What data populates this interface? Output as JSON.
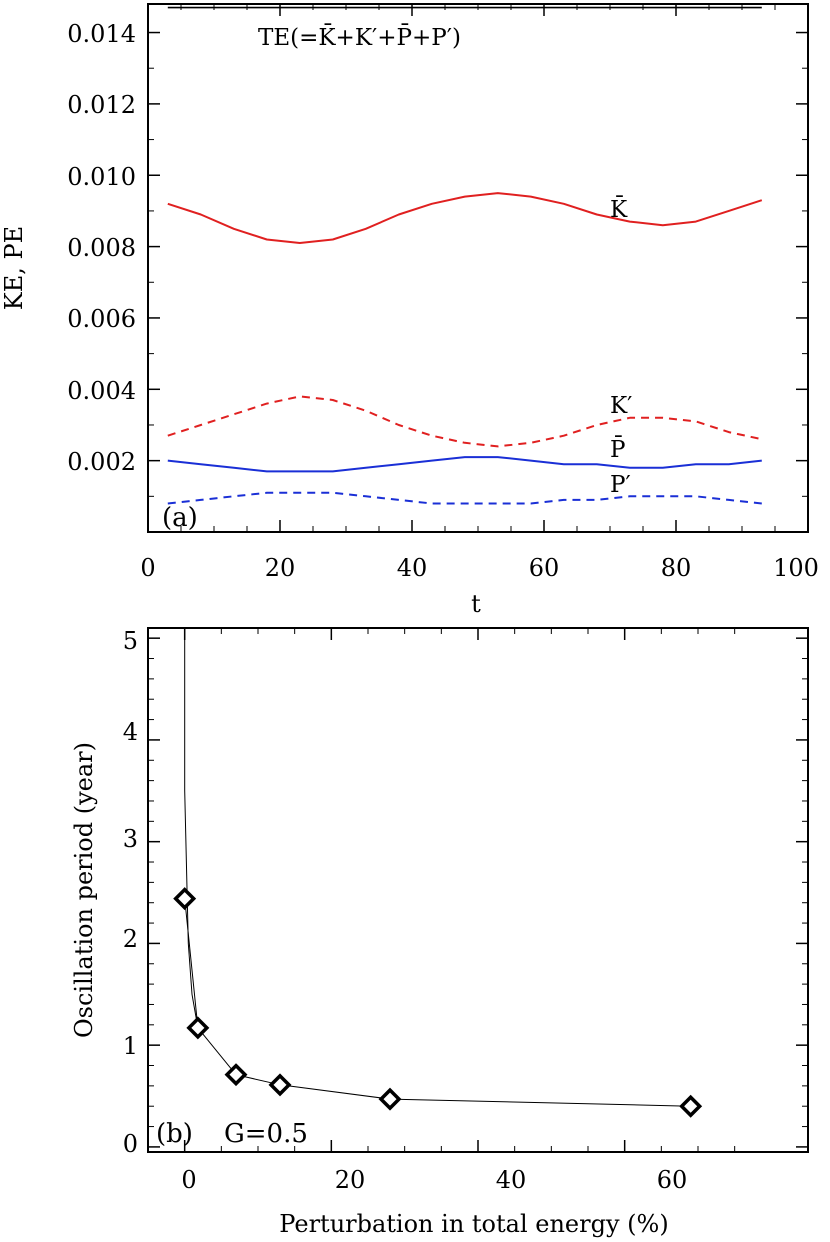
{
  "chart_data": [
    {
      "panel": "(a)",
      "type": "line",
      "xlabel": "t",
      "ylabel": "KE, PE",
      "xlim": [
        0,
        100
      ],
      "ylim": [
        0,
        0.0148
      ],
      "xticks": [
        "0",
        "20",
        "40",
        "60",
        "80",
        "100"
      ],
      "xtick_values": [
        0,
        20,
        40,
        60,
        80,
        100
      ],
      "yticks": [
        "0.002",
        "0.004",
        "0.006",
        "0.008",
        "0.010",
        "0.012",
        "0.014"
      ],
      "ytick_values": [
        0.002,
        0.004,
        0.006,
        0.008,
        0.01,
        0.012,
        0.014
      ],
      "grid": false,
      "series": [
        {
          "name": "TE(=K̄+K′+P̄+P′)",
          "color": "#000000",
          "dash": "solid",
          "x": [
            3,
            93
          ],
          "y": [
            0.0147,
            0.0147
          ]
        },
        {
          "name": "K̄",
          "color": "#e02020",
          "dash": "solid",
          "x": [
            3,
            8,
            13,
            18,
            23,
            28,
            33,
            38,
            43,
            48,
            53,
            58,
            63,
            68,
            73,
            78,
            83,
            88,
            93
          ],
          "y": [
            0.0092,
            0.0089,
            0.0085,
            0.0082,
            0.0081,
            0.0082,
            0.0085,
            0.0089,
            0.0092,
            0.0094,
            0.0095,
            0.0094,
            0.0092,
            0.0089,
            0.0087,
            0.0086,
            0.0087,
            0.009,
            0.0093
          ]
        },
        {
          "name": "K′",
          "color": "#e02020",
          "dash": "dashed",
          "x": [
            3,
            8,
            13,
            18,
            23,
            28,
            33,
            38,
            43,
            48,
            53,
            58,
            63,
            68,
            73,
            78,
            83,
            88,
            93
          ],
          "y": [
            0.0027,
            0.003,
            0.0033,
            0.0036,
            0.0038,
            0.0037,
            0.0034,
            0.003,
            0.0027,
            0.0025,
            0.0024,
            0.0025,
            0.0027,
            0.003,
            0.0032,
            0.0032,
            0.0031,
            0.0028,
            0.0026
          ]
        },
        {
          "name": "P̄",
          "color": "#1a2fd6",
          "dash": "solid",
          "x": [
            3,
            8,
            13,
            18,
            23,
            28,
            33,
            38,
            43,
            48,
            53,
            58,
            63,
            68,
            73,
            78,
            83,
            88,
            93
          ],
          "y": [
            0.002,
            0.0019,
            0.0018,
            0.0017,
            0.0017,
            0.0017,
            0.0018,
            0.0019,
            0.002,
            0.0021,
            0.0021,
            0.002,
            0.0019,
            0.0019,
            0.0018,
            0.0018,
            0.0019,
            0.0019,
            0.002
          ]
        },
        {
          "name": "P′",
          "color": "#1a2fd6",
          "dash": "dashed",
          "x": [
            3,
            8,
            13,
            18,
            23,
            28,
            33,
            38,
            43,
            48,
            53,
            58,
            63,
            68,
            73,
            78,
            83,
            88,
            93
          ],
          "y": [
            0.0008,
            0.0009,
            0.001,
            0.0011,
            0.0011,
            0.0011,
            0.001,
            0.0009,
            0.0008,
            0.0008,
            0.0008,
            0.0008,
            0.0009,
            0.0009,
            0.001,
            0.001,
            0.001,
            0.0009,
            0.0008
          ]
        }
      ]
    },
    {
      "panel": "(b)",
      "annotation": "G=0.5",
      "type": "line",
      "xlabel": "Perturbation in total energy (%)",
      "ylabel": "Oscillation period (year)",
      "xlim": [
        -5,
        85
      ],
      "ylim": [
        -0.05,
        5.1
      ],
      "xticks": [
        "0",
        "20",
        "40",
        "60"
      ],
      "xtick_values": [
        0,
        20,
        40,
        60
      ],
      "yticks": [
        "0",
        "1",
        "2",
        "3",
        "4",
        "5"
      ],
      "ytick_values": [
        0,
        1,
        2,
        3,
        4,
        5
      ],
      "grid": false,
      "line_color": "#000000",
      "marker": "diamond",
      "curve": {
        "x": [
          0,
          0,
          0.5,
          1.0,
          1.8
        ],
        "y": [
          5.1,
          3.5,
          2.0,
          1.5,
          1.17
        ]
      },
      "x": [
        0,
        1.8,
        7,
        13,
        28,
        69
      ],
      "y": [
        2.44,
        1.17,
        0.71,
        0.61,
        0.47,
        0.4
      ]
    }
  ]
}
